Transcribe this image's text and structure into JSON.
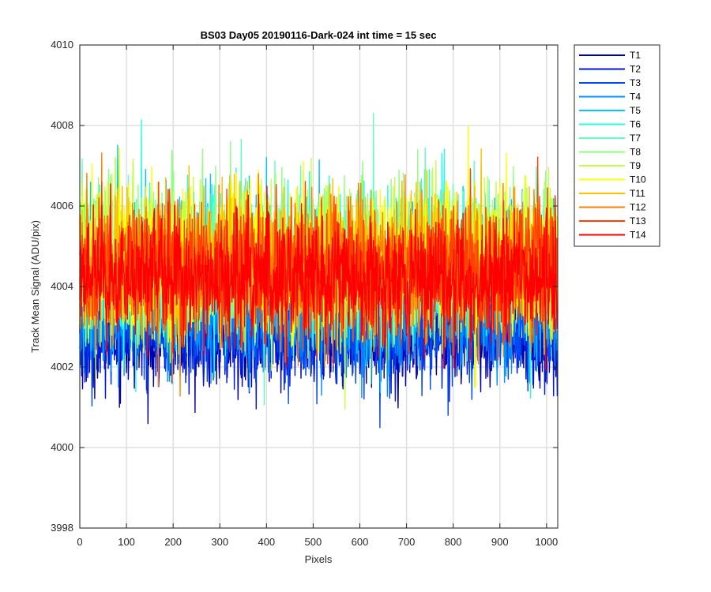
{
  "chart_data": {
    "type": "line",
    "title": "BS03 Day05 20190116-Dark-024 int time = 15 sec",
    "xlabel": "Pixels",
    "ylabel": "Track Mean Signal (ADU/pix)",
    "xlim": [
      0,
      1024
    ],
    "ylim": [
      3998,
      4010
    ],
    "xticks": [
      0,
      100,
      200,
      300,
      400,
      500,
      600,
      700,
      800,
      900,
      1000
    ],
    "yticks": [
      3998,
      4000,
      4002,
      4004,
      4006,
      4008,
      4010
    ],
    "grid": true,
    "legend_placement": "outside-right",
    "n_points": 1024,
    "series": [
      {
        "name": "T1",
        "color": "#0000a8",
        "mean": 4002.8,
        "spread": 0.9
      },
      {
        "name": "T2",
        "color": "#0018d8",
        "mean": 4002.9,
        "spread": 0.9
      },
      {
        "name": "T3",
        "color": "#0048f0",
        "mean": 4003.0,
        "spread": 0.9
      },
      {
        "name": "T4",
        "color": "#0090ff",
        "mean": 4003.3,
        "spread": 1.0
      },
      {
        "name": "T5",
        "color": "#00c8ff",
        "mean": 4004.4,
        "spread": 1.3
      },
      {
        "name": "T6",
        "color": "#20ffe8",
        "mean": 4004.6,
        "spread": 1.3
      },
      {
        "name": "T7",
        "color": "#60ffc0",
        "mean": 4004.6,
        "spread": 1.3
      },
      {
        "name": "T8",
        "color": "#90ff80",
        "mean": 4004.7,
        "spread": 1.3
      },
      {
        "name": "T9",
        "color": "#c8ff40",
        "mean": 4004.7,
        "spread": 1.3
      },
      {
        "name": "T10",
        "color": "#ffff00",
        "mean": 4004.6,
        "spread": 1.3
      },
      {
        "name": "T11",
        "color": "#ffc000",
        "mean": 4004.6,
        "spread": 1.2
      },
      {
        "name": "T12",
        "color": "#ff8000",
        "mean": 4004.5,
        "spread": 1.2
      },
      {
        "name": "T13",
        "color": "#ff4000",
        "mean": 4004.4,
        "spread": 1.2
      },
      {
        "name": "T14",
        "color": "#ff0000",
        "mean": 4004.2,
        "spread": 1.1
      }
    ]
  }
}
